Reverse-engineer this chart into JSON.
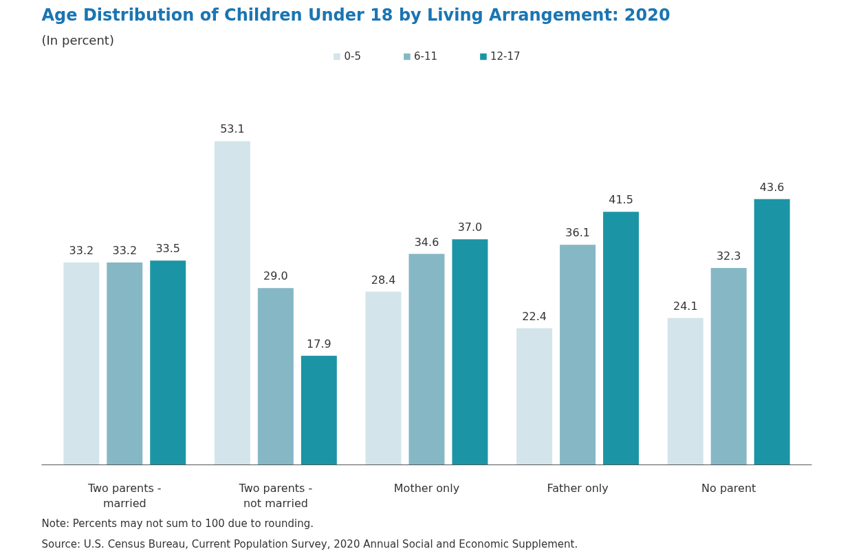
{
  "chart_data": {
    "type": "bar",
    "title": "Age Distribution of Children Under 18 by Living Arrangement: 2020",
    "subtitle": "(In percent)",
    "categories": [
      "Two parents - married",
      "Two parents - not married",
      "Mother only",
      "Father only",
      "No parent"
    ],
    "series": [
      {
        "name": "0-5",
        "color": "#d3e4ea",
        "values": [
          33.2,
          53.1,
          28.4,
          22.4,
          24.1
        ],
        "value_labels": [
          "33.2",
          "53.1",
          "28.4",
          "22.4",
          "24.1"
        ]
      },
      {
        "name": "6-11",
        "color": "#86b7c5",
        "values": [
          33.2,
          29.0,
          34.6,
          36.1,
          32.3
        ],
        "value_labels": [
          "33.2",
          "29.0",
          "34.6",
          "36.1",
          "32.3"
        ]
      },
      {
        "name": "12-17",
        "color": "#1b95a5",
        "values": [
          33.5,
          17.9,
          37.0,
          41.5,
          43.6
        ],
        "value_labels": [
          "33.5",
          "17.9",
          "37.0",
          "41.5",
          "43.6"
        ]
      }
    ],
    "grid": false,
    "legend": "top",
    "tick_labels": "x",
    "annotations": [
      "Note: Percents may not sum to 100 due to rounding.",
      "Source: U.S. Census Bureau, Current Population Survey, 2020 Annual Social and Economic Supplement."
    ]
  }
}
